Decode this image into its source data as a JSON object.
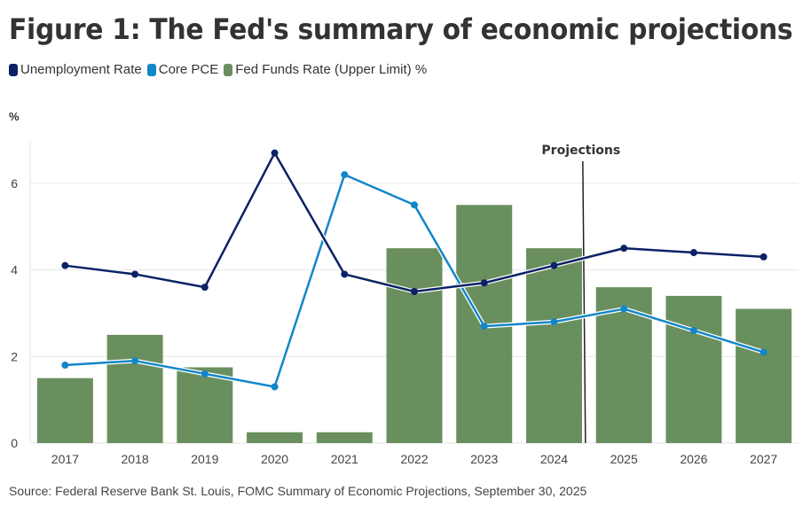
{
  "chart_data": {
    "type": "bar",
    "title": "Figure 1: The Fed's summary of economic projections",
    "ylabel": "%",
    "xlabel": "",
    "ylim": [
      0,
      7
    ],
    "yticks": [
      0,
      2,
      4,
      6
    ],
    "grid": true,
    "legend_position": "top-left",
    "categories": [
      "2017",
      "2018",
      "2019",
      "2020",
      "2021",
      "2022",
      "2023",
      "2024",
      "2025",
      "2026",
      "2027"
    ],
    "series": [
      {
        "name": "Unemployment Rate",
        "type": "line",
        "color": "#0b2265",
        "values": [
          4.1,
          3.9,
          3.6,
          6.7,
          3.9,
          3.5,
          3.7,
          4.1,
          4.5,
          4.4,
          4.3
        ]
      },
      {
        "name": "Core PCE",
        "type": "line",
        "color": "#1286c9",
        "values": [
          1.8,
          1.9,
          1.6,
          1.3,
          6.2,
          5.5,
          2.7,
          2.8,
          3.1,
          2.6,
          2.1
        ]
      },
      {
        "name": "Fed Funds Rate (Upper Limit) %",
        "type": "bar",
        "color": "#6a8f5e",
        "values": [
          1.5,
          2.5,
          1.75,
          0.25,
          0.25,
          4.5,
          5.5,
          4.5,
          3.6,
          3.4,
          3.1
        ]
      }
    ],
    "annotations": [
      {
        "text": "Projections",
        "type": "vertical-line",
        "between": [
          "2024",
          "2025"
        ]
      }
    ]
  },
  "header": {
    "title": "Figure 1: The Fed's summary of economic projections"
  },
  "legend": [
    {
      "label": "Unemployment Rate",
      "color": "#0b2265"
    },
    {
      "label": "Core PCE",
      "color": "#1286c9"
    },
    {
      "label": "Fed Funds Rate (Upper Limit) %",
      "color": "#6a8f5e"
    }
  ],
  "axis": {
    "unit": "%"
  },
  "footer": {
    "source": "Source: Federal Reserve Bank St. Louis, FOMC Summary of Economic Projections, September 30, 2025"
  }
}
